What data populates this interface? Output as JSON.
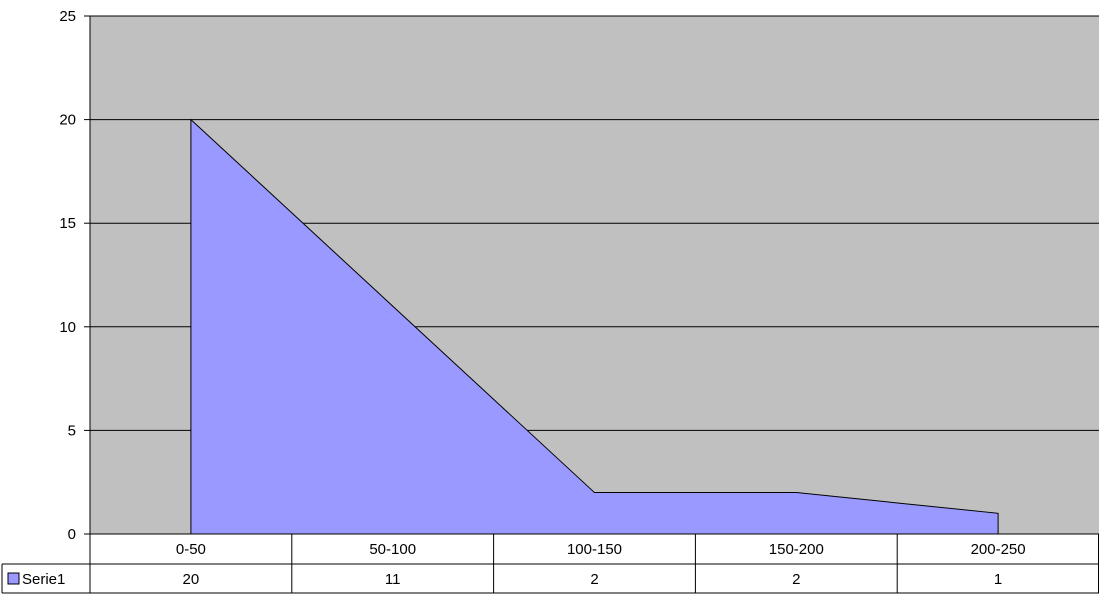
{
  "chart_data": {
    "type": "area",
    "categories": [
      "0-50",
      "50-100",
      "100-150",
      "150-200",
      "200-250"
    ],
    "series": [
      {
        "name": "Serie1",
        "values": [
          20,
          11,
          2,
          2,
          1
        ]
      }
    ],
    "ylim": [
      0,
      25
    ],
    "yticks": [
      0,
      5,
      10,
      15,
      20,
      25
    ],
    "grid": true,
    "legend": "data-table-left",
    "colors": {
      "plot_bg": "#c0c0c0",
      "area_fill": "#9999ff",
      "line": "#000000"
    }
  }
}
